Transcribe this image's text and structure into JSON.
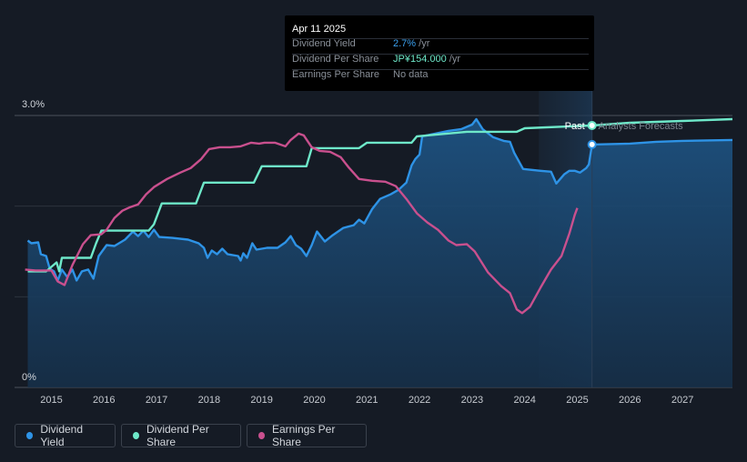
{
  "tooltip": {
    "date": "Apr 11 2025",
    "rows": [
      {
        "label": "Dividend Yield",
        "value": "2.7%",
        "unit": " /yr"
      },
      {
        "label": "Dividend Per Share",
        "value": "JP¥154.000",
        "unit": " /yr"
      },
      {
        "label": "Earnings Per Share",
        "value": "No data",
        "unit": ""
      }
    ]
  },
  "legend": [
    {
      "label": "Dividend Yield",
      "color": "#2e93e6"
    },
    {
      "label": "Dividend Per Share",
      "color": "#6ee8c9"
    },
    {
      "label": "Earnings Per Share",
      "color": "#c9508e"
    }
  ],
  "chart_data": {
    "type": "line",
    "ylabel_top": "3.0%",
    "ylabel_bottom": "0%",
    "ylim": [
      0,
      3.0
    ],
    "xlim": [
      2014.3,
      2027.95
    ],
    "x_ticks": [
      "2015",
      "2016",
      "2017",
      "2018",
      "2019",
      "2020",
      "2021",
      "2022",
      "2023",
      "2024",
      "2025",
      "2026",
      "2027"
    ],
    "past_label": "Past",
    "forecast_label": "Analysts Forecasts",
    "today": 2025.28,
    "forecast_band_start": 2024.27,
    "series": [
      {
        "name": "Dividend Yield",
        "color": "#2e93e6",
        "area": true,
        "points": [
          [
            2014.55,
            1.62
          ],
          [
            2014.62,
            1.59
          ],
          [
            2014.75,
            1.6
          ],
          [
            2014.8,
            1.47
          ],
          [
            2014.9,
            1.45
          ],
          [
            2014.97,
            1.31
          ],
          [
            2015.05,
            1.28
          ],
          [
            2015.12,
            1.18
          ],
          [
            2015.2,
            1.3
          ],
          [
            2015.3,
            1.22
          ],
          [
            2015.4,
            1.3
          ],
          [
            2015.48,
            1.18
          ],
          [
            2015.58,
            1.28
          ],
          [
            2015.7,
            1.3
          ],
          [
            2015.8,
            1.2
          ],
          [
            2015.9,
            1.45
          ],
          [
            2016.05,
            1.57
          ],
          [
            2016.2,
            1.56
          ],
          [
            2016.4,
            1.63
          ],
          [
            2016.55,
            1.72
          ],
          [
            2016.65,
            1.67
          ],
          [
            2016.75,
            1.73
          ],
          [
            2016.85,
            1.66
          ],
          [
            2016.95,
            1.74
          ],
          [
            2017.05,
            1.66
          ],
          [
            2017.3,
            1.65
          ],
          [
            2017.6,
            1.63
          ],
          [
            2017.8,
            1.59
          ],
          [
            2017.9,
            1.54
          ],
          [
            2017.97,
            1.43
          ],
          [
            2018.05,
            1.51
          ],
          [
            2018.15,
            1.47
          ],
          [
            2018.25,
            1.53
          ],
          [
            2018.35,
            1.47
          ],
          [
            2018.55,
            1.45
          ],
          [
            2018.6,
            1.4
          ],
          [
            2018.65,
            1.48
          ],
          [
            2018.72,
            1.43
          ],
          [
            2018.82,
            1.59
          ],
          [
            2018.9,
            1.52
          ],
          [
            2019.1,
            1.54
          ],
          [
            2019.3,
            1.54
          ],
          [
            2019.45,
            1.6
          ],
          [
            2019.55,
            1.67
          ],
          [
            2019.65,
            1.57
          ],
          [
            2019.75,
            1.53
          ],
          [
            2019.85,
            1.45
          ],
          [
            2019.95,
            1.57
          ],
          [
            2020.05,
            1.72
          ],
          [
            2020.2,
            1.61
          ],
          [
            2020.35,
            1.68
          ],
          [
            2020.55,
            1.76
          ],
          [
            2020.75,
            1.79
          ],
          [
            2020.85,
            1.85
          ],
          [
            2020.95,
            1.81
          ],
          [
            2021.1,
            1.97
          ],
          [
            2021.25,
            2.08
          ],
          [
            2021.45,
            2.13
          ],
          [
            2021.6,
            2.18
          ],
          [
            2021.75,
            2.26
          ],
          [
            2021.85,
            2.45
          ],
          [
            2021.92,
            2.52
          ],
          [
            2022.0,
            2.57
          ],
          [
            2022.05,
            2.77
          ],
          [
            2022.3,
            2.8
          ],
          [
            2022.55,
            2.83
          ],
          [
            2022.8,
            2.85
          ],
          [
            2023.0,
            2.9
          ],
          [
            2023.08,
            2.96
          ],
          [
            2023.2,
            2.85
          ],
          [
            2023.4,
            2.76
          ],
          [
            2023.6,
            2.72
          ],
          [
            2023.72,
            2.71
          ],
          [
            2023.8,
            2.59
          ],
          [
            2023.97,
            2.41
          ],
          [
            2024.3,
            2.39
          ],
          [
            2024.5,
            2.38
          ],
          [
            2024.6,
            2.25
          ],
          [
            2024.75,
            2.35
          ],
          [
            2024.85,
            2.39
          ],
          [
            2024.95,
            2.39
          ],
          [
            2025.05,
            2.37
          ],
          [
            2025.17,
            2.42
          ],
          [
            2025.22,
            2.46
          ],
          [
            2025.28,
            2.68
          ],
          [
            2026.0,
            2.69
          ],
          [
            2026.5,
            2.71
          ],
          [
            2027.0,
            2.72
          ],
          [
            2027.95,
            2.73
          ]
        ]
      },
      {
        "name": "Dividend Per Share",
        "color": "#6ee8c9",
        "area": false,
        "points": [
          [
            2014.55,
            1.28
          ],
          [
            2014.9,
            1.28
          ],
          [
            2015.1,
            1.38
          ],
          [
            2015.15,
            1.28
          ],
          [
            2015.2,
            1.43
          ],
          [
            2015.6,
            1.43
          ],
          [
            2015.75,
            1.43
          ],
          [
            2015.85,
            1.59
          ],
          [
            2015.95,
            1.73
          ],
          [
            2016.85,
            1.73
          ],
          [
            2016.95,
            1.8
          ],
          [
            2017.1,
            2.03
          ],
          [
            2017.75,
            2.03
          ],
          [
            2017.9,
            2.26
          ],
          [
            2018.85,
            2.26
          ],
          [
            2019.0,
            2.44
          ],
          [
            2019.85,
            2.44
          ],
          [
            2019.95,
            2.64
          ],
          [
            2020.85,
            2.64
          ],
          [
            2021.0,
            2.7
          ],
          [
            2021.85,
            2.7
          ],
          [
            2021.95,
            2.77
          ],
          [
            2022.9,
            2.82
          ],
          [
            2023.85,
            2.82
          ],
          [
            2024.0,
            2.86
          ],
          [
            2025.28,
            2.89
          ],
          [
            2026.0,
            2.92
          ],
          [
            2027.0,
            2.94
          ],
          [
            2027.95,
            2.96
          ]
        ]
      },
      {
        "name": "Earnings Per Share",
        "color": "#c9508e",
        "area": false,
        "points": [
          [
            2014.5,
            1.3
          ],
          [
            2014.7,
            1.29
          ],
          [
            2014.85,
            1.29
          ],
          [
            2015.0,
            1.29
          ],
          [
            2015.12,
            1.17
          ],
          [
            2015.25,
            1.13
          ],
          [
            2015.4,
            1.35
          ],
          [
            2015.6,
            1.58
          ],
          [
            2015.75,
            1.68
          ],
          [
            2015.95,
            1.69
          ],
          [
            2016.05,
            1.74
          ],
          [
            2016.2,
            1.87
          ],
          [
            2016.35,
            1.95
          ],
          [
            2016.5,
            1.99
          ],
          [
            2016.65,
            2.02
          ],
          [
            2016.8,
            2.13
          ],
          [
            2016.95,
            2.21
          ],
          [
            2017.2,
            2.3
          ],
          [
            2017.45,
            2.37
          ],
          [
            2017.65,
            2.42
          ],
          [
            2017.85,
            2.52
          ],
          [
            2018.0,
            2.63
          ],
          [
            2018.2,
            2.65
          ],
          [
            2018.4,
            2.65
          ],
          [
            2018.6,
            2.66
          ],
          [
            2018.8,
            2.7
          ],
          [
            2018.95,
            2.69
          ],
          [
            2019.05,
            2.7
          ],
          [
            2019.25,
            2.7
          ],
          [
            2019.45,
            2.66
          ],
          [
            2019.55,
            2.73
          ],
          [
            2019.7,
            2.8
          ],
          [
            2019.8,
            2.78
          ],
          [
            2019.95,
            2.65
          ],
          [
            2020.1,
            2.61
          ],
          [
            2020.3,
            2.6
          ],
          [
            2020.5,
            2.54
          ],
          [
            2020.65,
            2.43
          ],
          [
            2020.85,
            2.3
          ],
          [
            2021.1,
            2.28
          ],
          [
            2021.35,
            2.27
          ],
          [
            2021.55,
            2.22
          ],
          [
            2021.75,
            2.08
          ],
          [
            2021.95,
            1.92
          ],
          [
            2022.15,
            1.82
          ],
          [
            2022.35,
            1.74
          ],
          [
            2022.55,
            1.62
          ],
          [
            2022.7,
            1.57
          ],
          [
            2022.9,
            1.58
          ],
          [
            2023.05,
            1.5
          ],
          [
            2023.3,
            1.27
          ],
          [
            2023.55,
            1.12
          ],
          [
            2023.72,
            1.04
          ],
          [
            2023.85,
            0.86
          ],
          [
            2023.95,
            0.82
          ],
          [
            2024.1,
            0.89
          ],
          [
            2024.3,
            1.1
          ],
          [
            2024.5,
            1.3
          ],
          [
            2024.7,
            1.45
          ],
          [
            2024.85,
            1.7
          ],
          [
            2024.95,
            1.9
          ],
          [
            2025.0,
            1.98
          ]
        ]
      }
    ]
  }
}
